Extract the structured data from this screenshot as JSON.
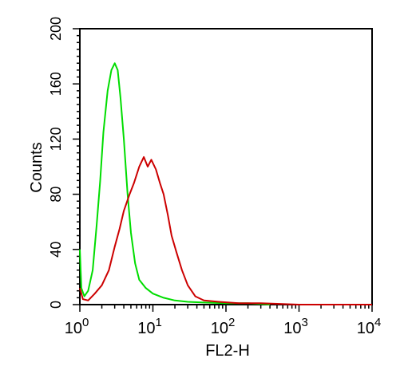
{
  "chart_data": {
    "type": "line",
    "xlabel": "FL2-H",
    "ylabel": "Counts",
    "x_scale": "log",
    "xlim": [
      1,
      10000
    ],
    "ylim": [
      0,
      200
    ],
    "y_ticks": [
      0,
      40,
      80,
      120,
      160,
      200
    ],
    "y_tick_labels": [
      "0",
      "40",
      "80",
      "120",
      "160",
      "200"
    ],
    "x_ticks": [
      {
        "base": "10",
        "exp": "0",
        "value": 1
      },
      {
        "base": "10",
        "exp": "1",
        "value": 10
      },
      {
        "base": "10",
        "exp": "2",
        "value": 100
      },
      {
        "base": "10",
        "exp": "3",
        "value": 1000
      },
      {
        "base": "10",
        "exp": "4",
        "value": 10000
      }
    ],
    "grid": false,
    "legend": "none",
    "series": [
      {
        "color": "#00dd00",
        "points": [
          [
            1.0,
            40
          ],
          [
            1.05,
            12
          ],
          [
            1.15,
            6
          ],
          [
            1.3,
            10
          ],
          [
            1.5,
            25
          ],
          [
            1.7,
            58
          ],
          [
            1.9,
            90
          ],
          [
            2.1,
            125
          ],
          [
            2.4,
            155
          ],
          [
            2.7,
            170
          ],
          [
            3.0,
            175
          ],
          [
            3.3,
            170
          ],
          [
            3.6,
            150
          ],
          [
            4.0,
            120
          ],
          [
            4.5,
            80
          ],
          [
            5.0,
            52
          ],
          [
            5.7,
            30
          ],
          [
            6.5,
            18
          ],
          [
            8,
            12
          ],
          [
            10,
            8
          ],
          [
            14,
            5
          ],
          [
            20,
            3
          ],
          [
            30,
            2
          ],
          [
            50,
            1.5
          ],
          [
            100,
            1
          ],
          [
            200,
            1
          ],
          [
            300,
            0.5
          ],
          [
            400,
            0
          ]
        ]
      },
      {
        "color": "#cc0000",
        "points": [
          [
            1.0,
            12
          ],
          [
            1.1,
            4
          ],
          [
            1.3,
            3
          ],
          [
            1.6,
            8
          ],
          [
            2.0,
            14
          ],
          [
            2.5,
            25
          ],
          [
            3.0,
            42
          ],
          [
            3.5,
            55
          ],
          [
            4.0,
            68
          ],
          [
            4.8,
            80
          ],
          [
            5.5,
            88
          ],
          [
            6.5,
            100
          ],
          [
            7.5,
            107
          ],
          [
            8.5,
            100
          ],
          [
            9.5,
            105
          ],
          [
            11,
            98
          ],
          [
            12.5,
            88
          ],
          [
            14,
            80
          ],
          [
            16,
            65
          ],
          [
            18,
            50
          ],
          [
            21,
            38
          ],
          [
            25,
            25
          ],
          [
            30,
            14
          ],
          [
            38,
            6
          ],
          [
            50,
            3
          ],
          [
            80,
            2
          ],
          [
            150,
            1
          ],
          [
            300,
            1
          ],
          [
            1000,
            0
          ],
          [
            10000,
            0
          ]
        ]
      }
    ]
  }
}
